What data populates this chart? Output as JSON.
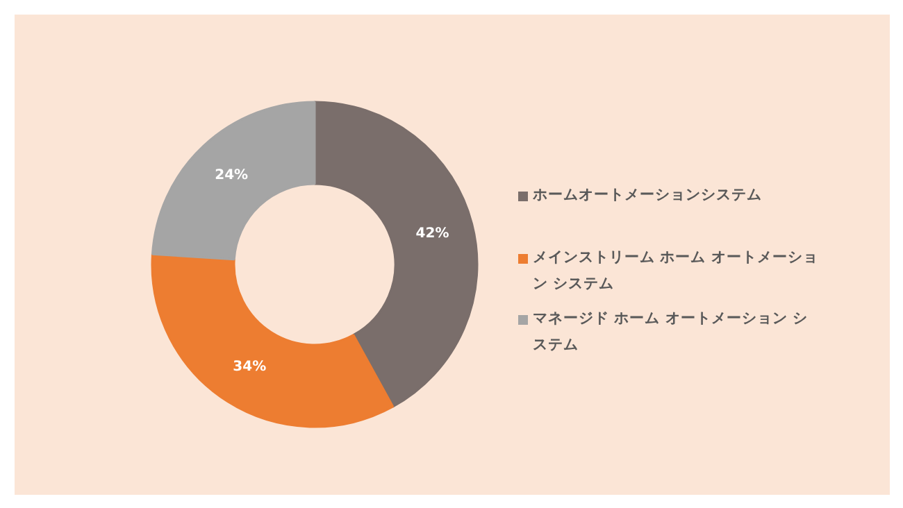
{
  "chart_data": {
    "type": "donut",
    "categories": [
      "ホームオートメーションシステム",
      "メインストリーム ホーム オートメーション システム",
      "マネージド ホーム オートメーション システム"
    ],
    "values": [
      42,
      34,
      24
    ],
    "colors": [
      "#7a6e6b",
      "#ed7d31",
      "#a5a5a5"
    ],
    "value_labels": [
      "42%",
      "34%",
      "24%"
    ],
    "legend": "right"
  }
}
